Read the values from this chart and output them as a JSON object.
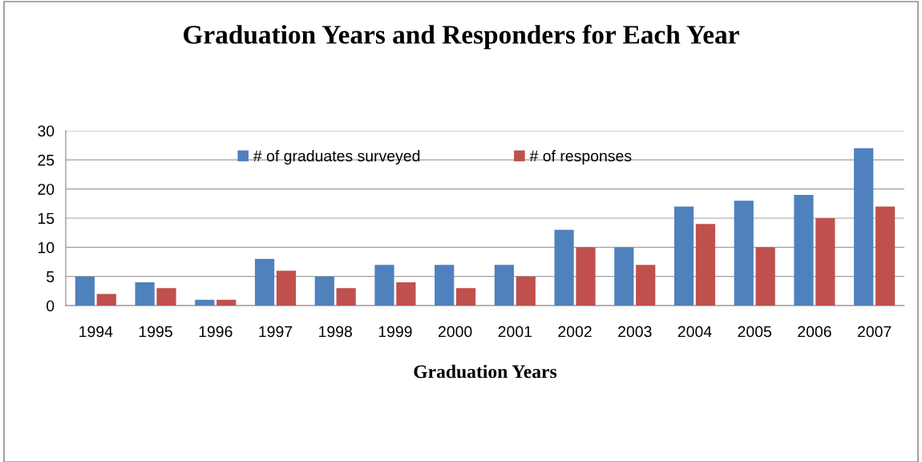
{
  "chart_data": {
    "type": "bar",
    "title": "Graduation Years and Responders for Each Year",
    "xlabel": "Graduation Years",
    "categories": [
      "1994",
      "1995",
      "1996",
      "1997",
      "1998",
      "1999",
      "2000",
      "2001",
      "2002",
      "2003",
      "2004",
      "2005",
      "2006",
      "2007"
    ],
    "series": [
      {
        "name": "# of graduates surveyed",
        "color": "#4f81bd",
        "values": [
          5,
          4,
          1,
          8,
          5,
          7,
          7,
          7,
          13,
          10,
          17,
          18,
          19,
          27
        ]
      },
      {
        "name": "# of responses",
        "color": "#c0504d",
        "values": [
          2,
          3,
          1,
          6,
          3,
          4,
          3,
          5,
          10,
          7,
          14,
          10,
          15,
          17
        ]
      }
    ],
    "ylim": [
      0,
      30
    ],
    "yticks": [
      0,
      5,
      10,
      15,
      20,
      25,
      30
    ],
    "grid": "y",
    "legend": "top"
  }
}
